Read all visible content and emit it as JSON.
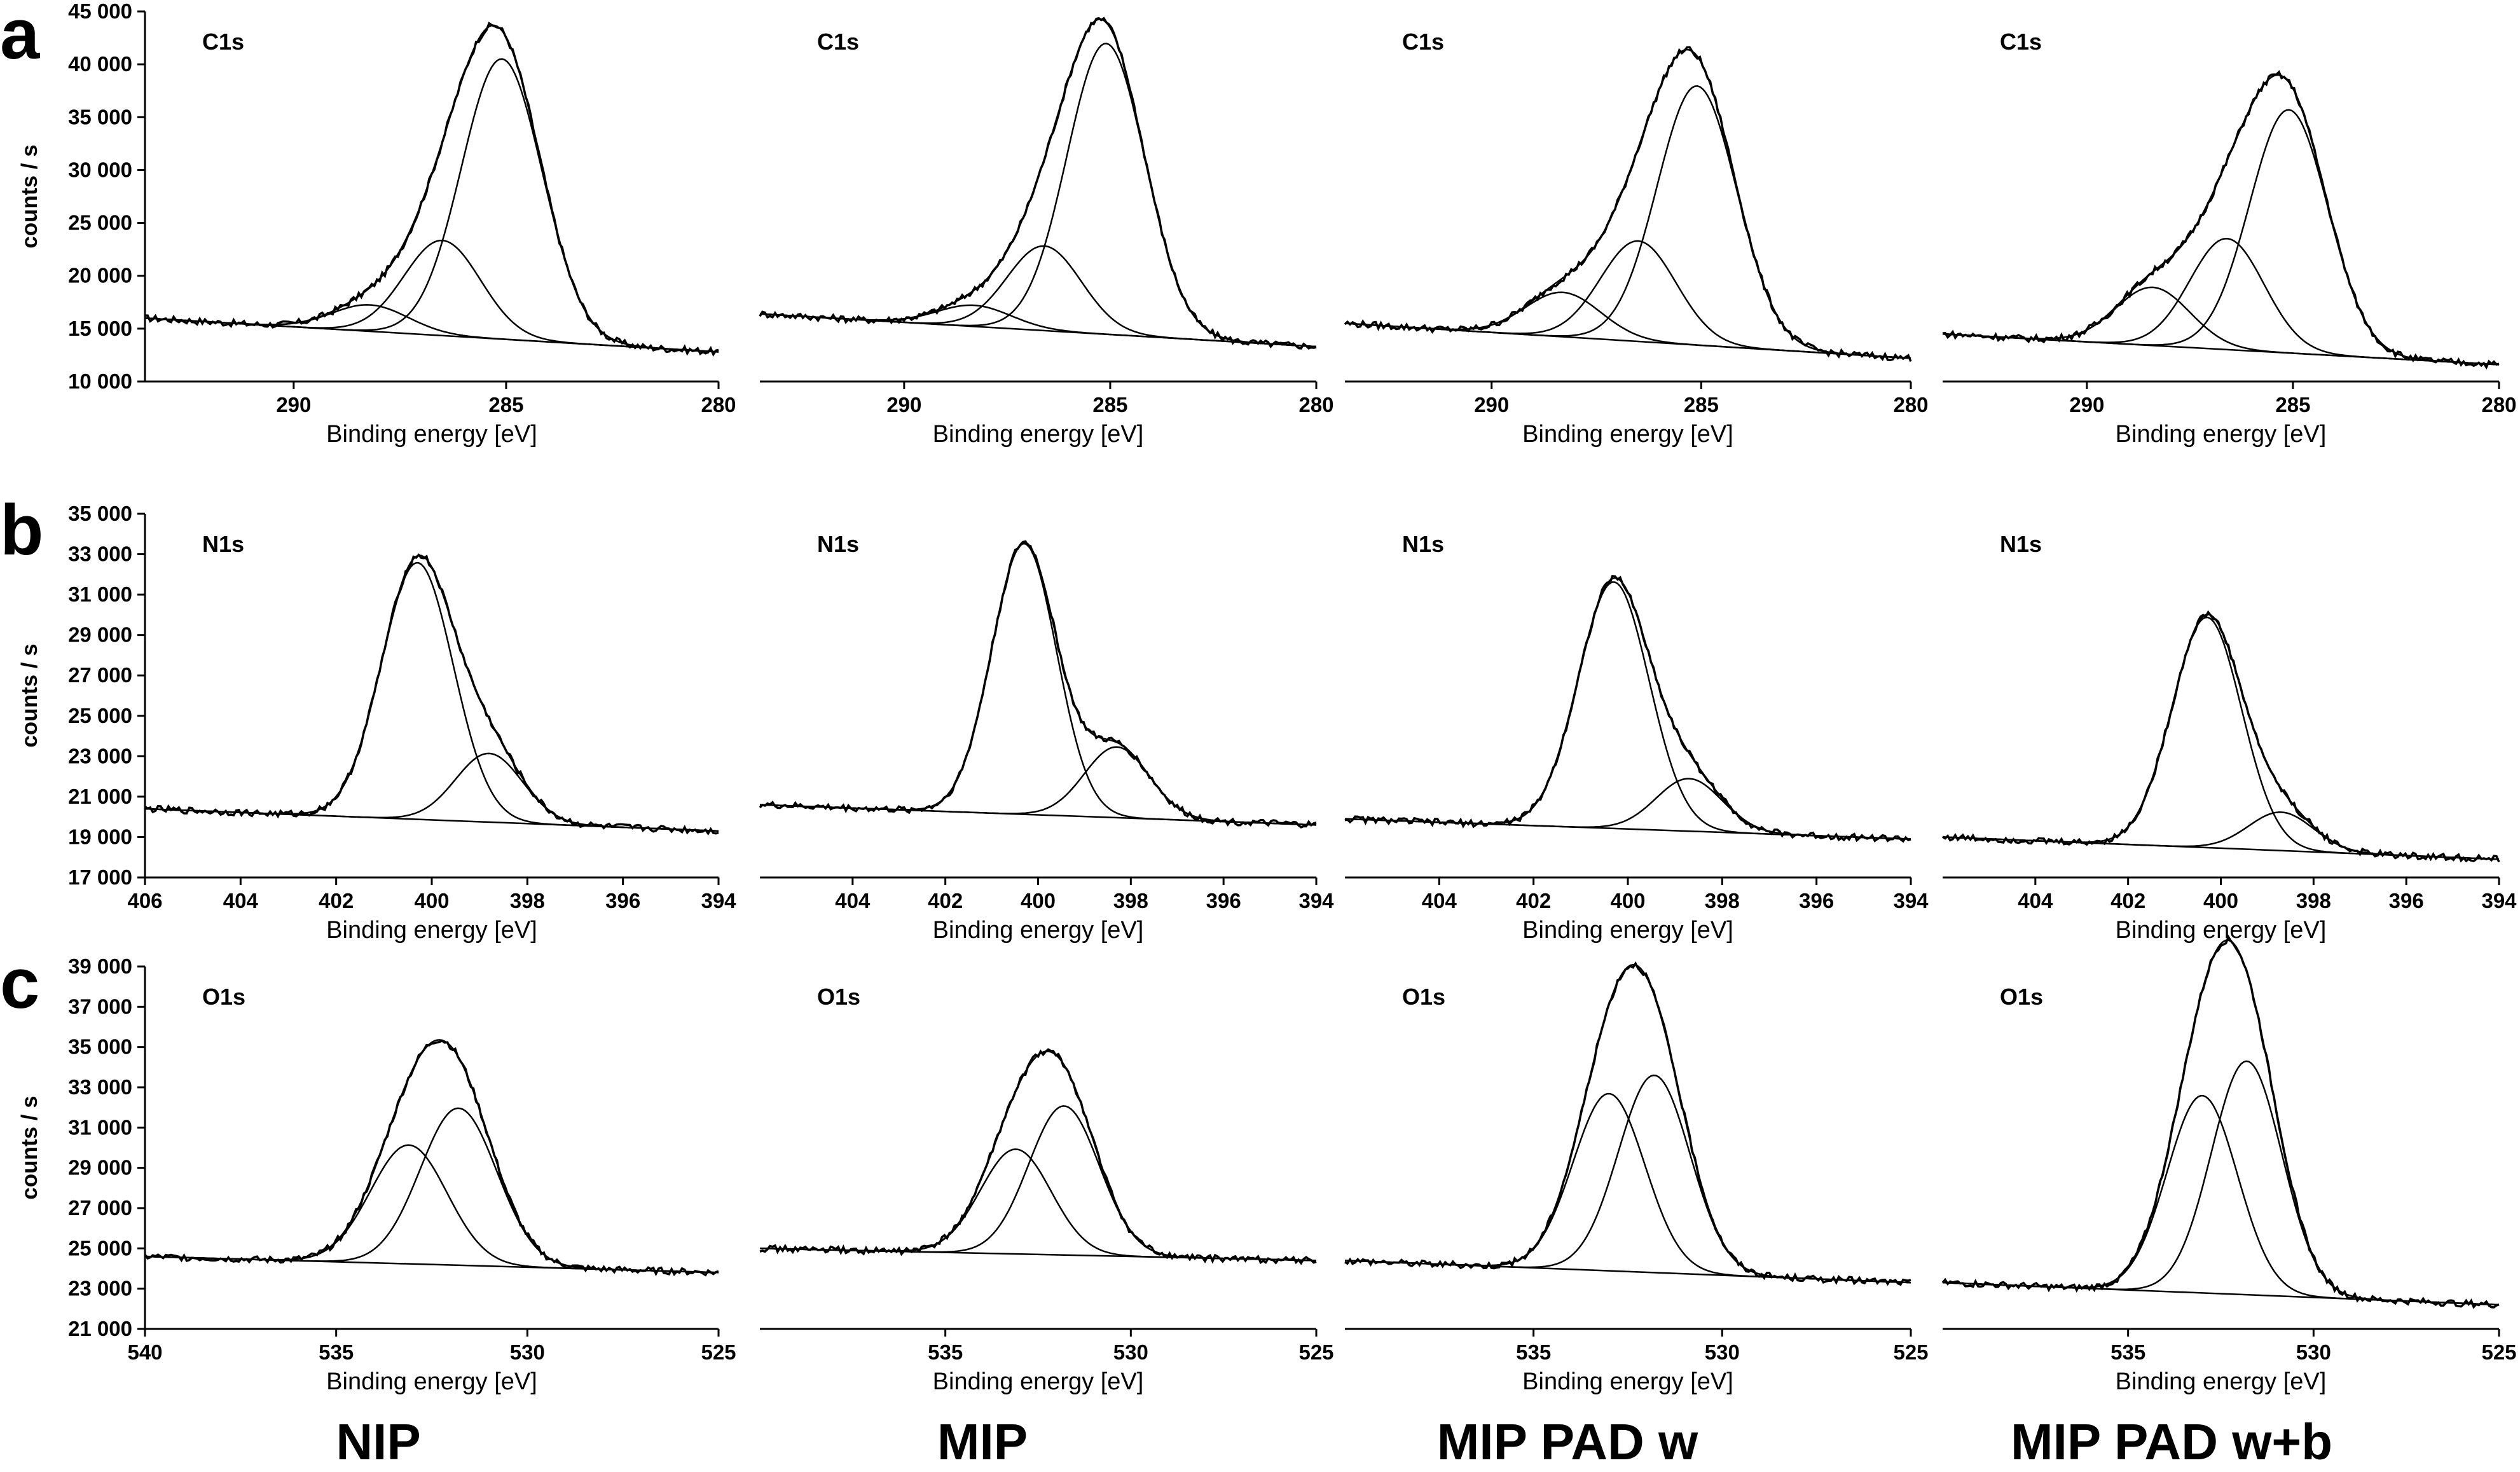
{
  "figure": {
    "row_letters": [
      "a",
      "b",
      "c"
    ],
    "y_axis_label": "counts / s",
    "x_axis_label": "Binding energy [eV]",
    "samples": [
      "NIP",
      "MIP",
      "MIP PAD w",
      "MIP PAD w+b"
    ]
  },
  "chart_data": [
    {
      "type": "line",
      "row": "a",
      "sample": "NIP",
      "annotation": "C1s",
      "xlabel": "Binding energy [eV]",
      "ylabel": "counts / s",
      "xlim": [
        293.5,
        280
      ],
      "ylim": [
        10000,
        45000
      ],
      "x_reversed": true,
      "xticks": [
        290,
        285,
        280
      ],
      "yticks": [
        10000,
        15000,
        20000,
        25000,
        30000,
        35000,
        40000,
        45000
      ],
      "ytick_labels": [
        "10 000",
        "15 000",
        "20 000",
        "25 000",
        "30 000",
        "35 000",
        "40 000",
        "45 000"
      ],
      "envelope": {
        "bg_start": 16000,
        "bg_end": 12800,
        "peaks": [
          [
            285.1,
            26500,
            0.95
          ],
          [
            286.5,
            9000,
            0.9
          ],
          [
            288.2,
            2500,
            0.9
          ]
        ]
      },
      "series": [
        {
          "values_desc": "fitted components"
        }
      ]
    },
    {
      "type": "line",
      "row": "a",
      "sample": "MIP",
      "annotation": "C1s",
      "xlabel": "Binding energy [eV]",
      "ylabel": "",
      "xlim": [
        293.5,
        280
      ],
      "ylim": [
        10000,
        45000
      ],
      "x_reversed": true,
      "xticks": [
        290,
        285,
        280
      ],
      "envelope": {
        "bg_start": 16400,
        "bg_end": 13300,
        "peaks": [
          [
            285.1,
            27500,
            0.95
          ],
          [
            286.6,
            8000,
            0.9
          ],
          [
            288.3,
            2000,
            0.9
          ]
        ]
      }
    },
    {
      "type": "line",
      "row": "a",
      "sample": "MIP PAD w",
      "annotation": "C1s",
      "xlabel": "Binding energy [eV]",
      "ylabel": "",
      "xlim": [
        293.5,
        280
      ],
      "ylim": [
        10000,
        45000
      ],
      "x_reversed": true,
      "xticks": [
        290,
        285,
        280
      ],
      "envelope": {
        "bg_start": 15500,
        "bg_end": 12200,
        "peaks": [
          [
            285.1,
            24500,
            0.95
          ],
          [
            286.5,
            9500,
            0.9
          ],
          [
            288.3,
            4200,
            0.9
          ]
        ]
      }
    },
    {
      "type": "line",
      "row": "a",
      "sample": "MIP PAD w+b",
      "annotation": "C1s",
      "xlabel": "Binding energy [eV]",
      "ylabel": "",
      "xlim": [
        293.5,
        280
      ],
      "ylim": [
        10000,
        45000
      ],
      "x_reversed": true,
      "xticks": [
        290,
        285,
        280
      ],
      "envelope": {
        "bg_start": 14500,
        "bg_end": 11600,
        "peaks": [
          [
            285.1,
            23000,
            0.95
          ],
          [
            286.6,
            10500,
            0.9
          ],
          [
            288.4,
            5500,
            0.9
          ]
        ]
      }
    },
    {
      "type": "line",
      "row": "b",
      "sample": "NIP",
      "annotation": "N1s",
      "xlabel": "Binding energy [eV]",
      "ylabel": "counts / s",
      "xlim": [
        406,
        394
      ],
      "ylim": [
        17000,
        35000
      ],
      "x_reversed": true,
      "xticks": [
        406,
        404,
        402,
        400,
        398,
        396,
        394
      ],
      "yticks": [
        17000,
        19000,
        21000,
        23000,
        25000,
        27000,
        29000,
        31000,
        33000,
        35000
      ],
      "ytick_labels": [
        "17 000",
        "19 000",
        "21 000",
        "23 000",
        "25 000",
        "27 000",
        "29 000",
        "31 000",
        "33 000",
        "35 000"
      ],
      "envelope": {
        "bg_start": 20400,
        "bg_end": 19300,
        "peaks": [
          [
            400.3,
            12700,
            0.75
          ],
          [
            398.8,
            3400,
            0.7
          ]
        ]
      }
    },
    {
      "type": "line",
      "row": "b",
      "sample": "MIP",
      "annotation": "N1s",
      "xlabel": "Binding energy [eV]",
      "ylabel": "",
      "xlim": [
        406,
        394
      ],
      "ylim": [
        17000,
        35000
      ],
      "x_reversed": true,
      "xticks": [
        404,
        402,
        400,
        398,
        396,
        394
      ],
      "envelope": {
        "bg_start": 20600,
        "bg_end": 19600,
        "peaks": [
          [
            400.3,
            13400,
            0.7
          ],
          [
            398.3,
            3500,
            0.7
          ]
        ]
      }
    },
    {
      "type": "line",
      "row": "b",
      "sample": "MIP PAD w",
      "annotation": "N1s",
      "xlabel": "Binding energy [eV]",
      "ylabel": "",
      "xlim": [
        406,
        394
      ],
      "ylim": [
        17000,
        35000
      ],
      "x_reversed": true,
      "xticks": [
        404,
        402,
        400,
        398,
        396,
        394
      ],
      "envelope": {
        "bg_start": 19900,
        "bg_end": 18900,
        "peaks": [
          [
            400.3,
            12200,
            0.75
          ],
          [
            398.7,
            2600,
            0.7
          ]
        ]
      }
    },
    {
      "type": "line",
      "row": "b",
      "sample": "MIP PAD w+b",
      "annotation": "N1s",
      "xlabel": "Binding energy [eV]",
      "ylabel": "",
      "xlim": [
        406,
        394
      ],
      "ylim": [
        17000,
        35000
      ],
      "x_reversed": true,
      "xticks": [
        404,
        402,
        400,
        398,
        396,
        394
      ],
      "envelope": {
        "bg_start": 19000,
        "bg_end": 17900,
        "peaks": [
          [
            400.3,
            11400,
            0.75
          ],
          [
            398.7,
            1900,
            0.7
          ]
        ]
      }
    },
    {
      "type": "line",
      "row": "c",
      "sample": "NIP",
      "annotation": "O1s",
      "xlabel": "Binding energy [eV]",
      "ylabel": "counts / s",
      "xlim": [
        540,
        525
      ],
      "ylim": [
        21000,
        39000
      ],
      "x_reversed": true,
      "xticks": [
        540,
        535,
        530,
        525
      ],
      "yticks": [
        21000,
        23000,
        25000,
        27000,
        29000,
        31000,
        33000,
        35000,
        37000,
        39000
      ],
      "ytick_labels": [
        "21 000",
        "23 000",
        "25 000",
        "27 000",
        "29 000",
        "31 000",
        "33 000",
        "35 000",
        "37 000",
        "39 000"
      ],
      "envelope": {
        "bg_start": 24600,
        "bg_end": 23800,
        "peaks": [
          [
            533.1,
            5900,
            1.0
          ],
          [
            531.8,
            7800,
            1.0
          ]
        ]
      }
    },
    {
      "type": "line",
      "row": "c",
      "sample": "MIP",
      "annotation": "O1s",
      "xlabel": "Binding energy [eV]",
      "ylabel": "",
      "xlim": [
        540,
        525
      ],
      "ylim": [
        21000,
        39000
      ],
      "x_reversed": true,
      "xticks": [
        535,
        530,
        525
      ],
      "envelope": {
        "bg_start": 25000,
        "bg_end": 24400,
        "peaks": [
          [
            533.1,
            5200,
            0.95
          ],
          [
            531.8,
            7400,
            0.95
          ]
        ]
      }
    },
    {
      "type": "line",
      "row": "c",
      "sample": "MIP PAD w",
      "annotation": "O1s",
      "xlabel": "Binding energy [eV]",
      "ylabel": "",
      "xlim": [
        540,
        525
      ],
      "ylim": [
        21000,
        39000
      ],
      "x_reversed": true,
      "xticks": [
        535,
        530,
        525
      ],
      "envelope": {
        "bg_start": 24400,
        "bg_end": 23300,
        "peaks": [
          [
            533.0,
            8800,
            0.95
          ],
          [
            531.8,
            9800,
            0.95
          ]
        ]
      }
    },
    {
      "type": "line",
      "row": "c",
      "sample": "MIP PAD w+b",
      "annotation": "O1s",
      "xlabel": "Binding energy [eV]",
      "ylabel": "",
      "xlim": [
        540,
        525
      ],
      "ylim": [
        21000,
        39000
      ],
      "x_reversed": true,
      "xticks": [
        535,
        530,
        525
      ],
      "envelope": {
        "bg_start": 23300,
        "bg_end": 22200,
        "peaks": [
          [
            533.0,
            9800,
            0.95
          ],
          [
            531.8,
            11600,
            0.95
          ]
        ]
      }
    }
  ]
}
